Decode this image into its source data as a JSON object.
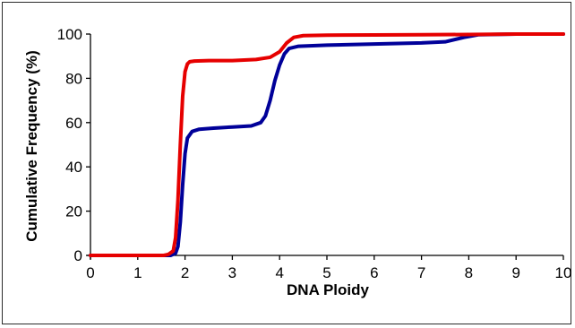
{
  "chart_data": {
    "type": "line",
    "title": "",
    "xlabel": "DNA Ploidy",
    "ylabel": "Cumulative Frequency (%)",
    "xlim": [
      0,
      10
    ],
    "ylim": [
      0,
      100
    ],
    "x_ticks": [
      0,
      1,
      2,
      3,
      4,
      5,
      6,
      7,
      8,
      9,
      10
    ],
    "y_ticks": [
      0,
      20,
      40,
      60,
      80,
      100
    ],
    "grid": false,
    "legend": "none",
    "series": [
      {
        "color": "#e60000",
        "x": [
          0,
          1.55,
          1.65,
          1.75,
          1.8,
          1.85,
          1.9,
          1.95,
          2.0,
          2.05,
          2.1,
          2.2,
          2.5,
          3.0,
          3.5,
          3.8,
          4.0,
          4.15,
          4.3,
          4.5,
          5,
          6,
          7,
          8,
          9,
          10
        ],
        "y": [
          0,
          0,
          0.5,
          2,
          8,
          25,
          50,
          72,
          83,
          86.5,
          87.5,
          87.8,
          88,
          88,
          88.5,
          89.5,
          92,
          96,
          98.5,
          99.3,
          99.5,
          99.6,
          99.7,
          99.8,
          100,
          100
        ]
      },
      {
        "color": "#000099",
        "x": [
          0,
          1.7,
          1.8,
          1.85,
          1.9,
          1.95,
          2.0,
          2.05,
          2.15,
          2.3,
          2.6,
          3.0,
          3.4,
          3.6,
          3.7,
          3.8,
          3.9,
          4.0,
          4.1,
          4.2,
          4.4,
          5,
          6,
          7,
          7.5,
          7.9,
          8.2,
          9,
          10
        ],
        "y": [
          0,
          0,
          1,
          4,
          15,
          32,
          46,
          53,
          56,
          57,
          57.5,
          58,
          58.5,
          60,
          63,
          70,
          79,
          86,
          91,
          93.5,
          94.5,
          95,
          95.5,
          96,
          96.5,
          98.5,
          99.7,
          100,
          100
        ]
      }
    ]
  }
}
